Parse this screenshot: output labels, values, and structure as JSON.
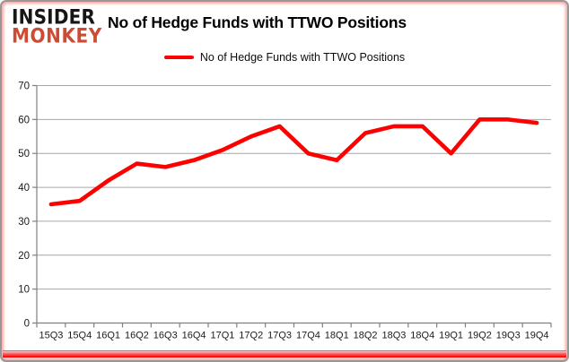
{
  "brand": {
    "line1": "INSIDER",
    "line2": "MONKEY"
  },
  "header": {
    "title": "No of Hedge Funds with TTWO Positions"
  },
  "legend": {
    "label": "No of Hedge Funds with TTWO Positions"
  },
  "colors": {
    "series": "#ff0000",
    "grid": "#a6a6a6",
    "axis": "#808080",
    "tick_label": "#1a1a1a",
    "brand_black": "#161616",
    "brand_red": "#cd4a33",
    "accent_bar": "#f80000"
  },
  "chart_data": {
    "type": "line",
    "title": "No of Hedge Funds with TTWO Positions",
    "x": [
      "15Q3",
      "15Q4",
      "16Q1",
      "16Q2",
      "16Q3",
      "16Q4",
      "17Q1",
      "17Q2",
      "17Q3",
      "17Q4",
      "18Q1",
      "18Q2",
      "18Q3",
      "18Q4",
      "19Q1",
      "19Q2",
      "19Q3",
      "19Q4"
    ],
    "series": [
      {
        "name": "No of Hedge Funds with TTWO Positions",
        "color": "#ff0000",
        "values": [
          35,
          36,
          42,
          47,
          46,
          48,
          51,
          55,
          58,
          50,
          48,
          56,
          58,
          58,
          50,
          60,
          60,
          59
        ]
      }
    ],
    "xlabel": "",
    "ylabel": "",
    "ylim": [
      0,
      70
    ],
    "y_ticks": [
      0,
      10,
      20,
      30,
      40,
      50,
      60,
      70
    ],
    "grid": true,
    "legend_position": "top"
  }
}
